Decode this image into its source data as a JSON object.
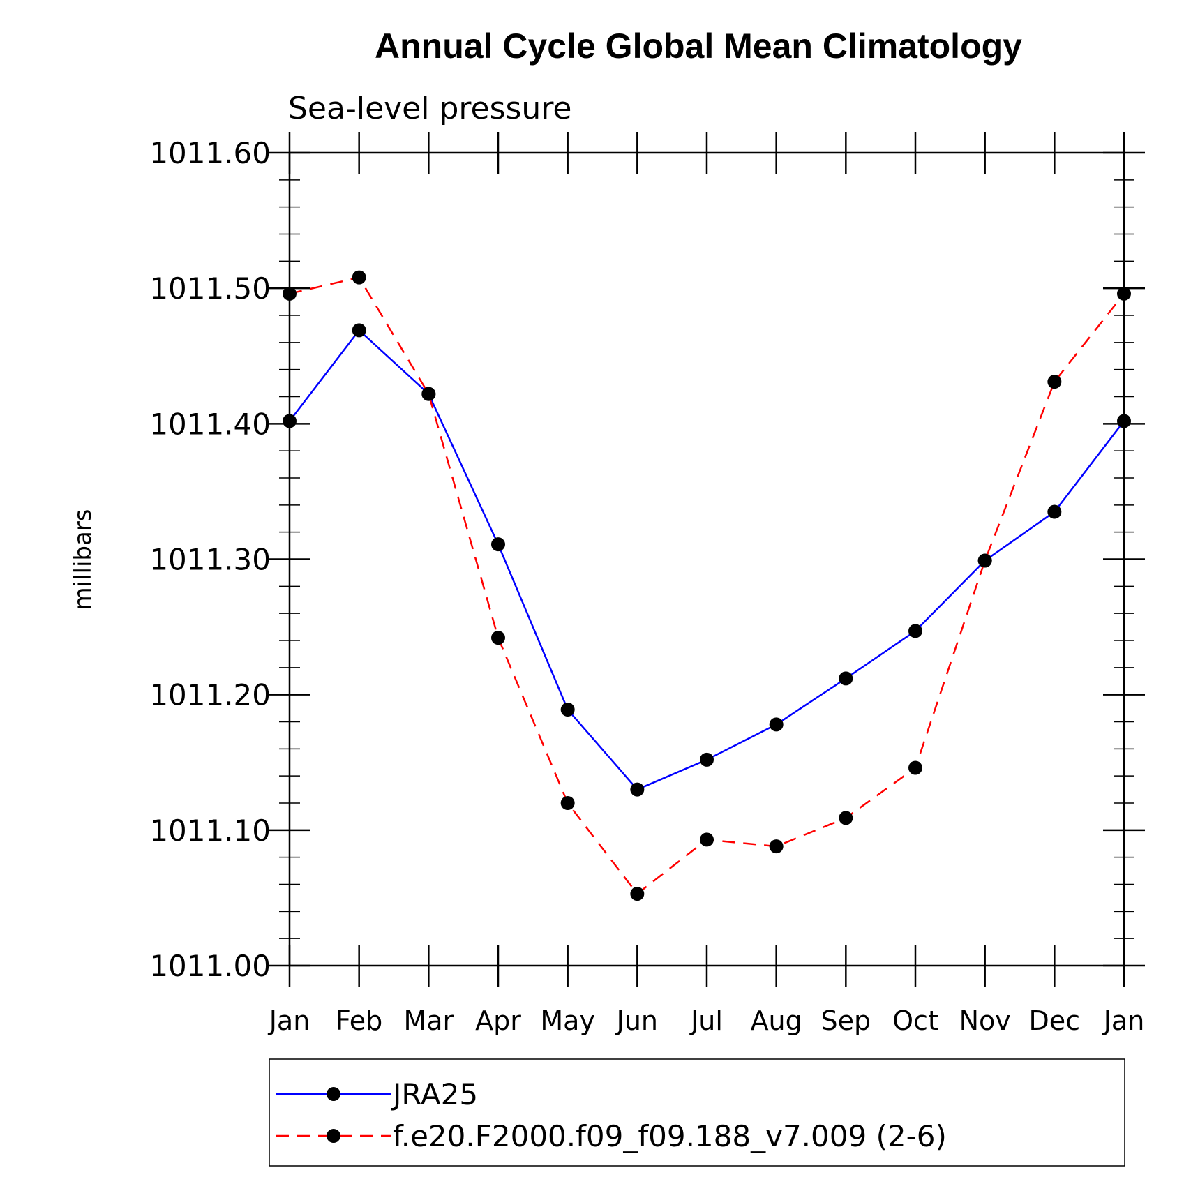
{
  "chart_data": {
    "type": "line",
    "title": "Annual Cycle Global Mean Climatology",
    "subtitle": "Sea-level pressure",
    "xlabel": "",
    "ylabel": "millibars",
    "categories": [
      "Jan",
      "Feb",
      "Mar",
      "Apr",
      "May",
      "Jun",
      "Jul",
      "Aug",
      "Sep",
      "Oct",
      "Nov",
      "Dec",
      "Jan"
    ],
    "ylim": [
      1011.0,
      1011.6
    ],
    "yticks": [
      "1011.00",
      "1011.10",
      "1011.20",
      "1011.30",
      "1011.40",
      "1011.50",
      "1011.60"
    ],
    "legend_position": "bottom",
    "grid": false,
    "series": [
      {
        "name": "JRA25",
        "color": "#0000ff",
        "dash": "solid",
        "marker": "filled-circle",
        "values": [
          1011.402,
          1011.469,
          1011.422,
          1011.311,
          1011.189,
          1011.13,
          1011.152,
          1011.178,
          1011.212,
          1011.247,
          1011.299,
          1011.335,
          1011.402
        ]
      },
      {
        "name": "f.e20.F2000.f09_f09.188_v7.009 (2-6)",
        "color": "#ff0000",
        "dash": "dashed",
        "marker": "filled-circle",
        "values": [
          1011.496,
          1011.508,
          1011.422,
          1011.242,
          1011.12,
          1011.053,
          1011.093,
          1011.088,
          1011.109,
          1011.146,
          1011.299,
          1011.431,
          1011.496
        ]
      }
    ]
  }
}
